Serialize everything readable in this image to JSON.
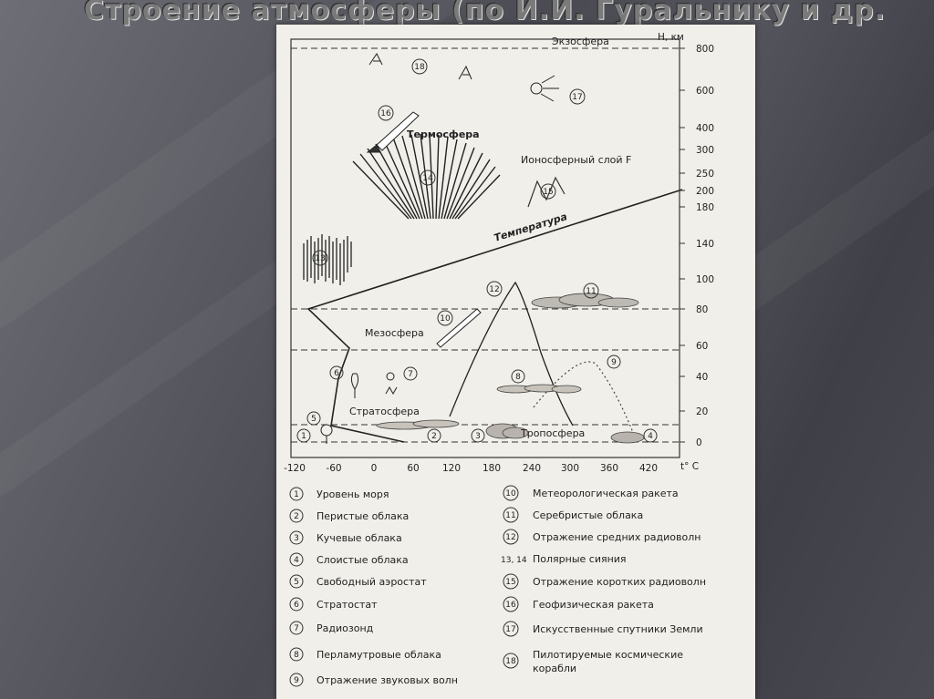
{
  "slide": {
    "title": "Строение атмосферы (по И.И. Гуральнику и др."
  },
  "diagram": {
    "y_axis_label": "Н, км",
    "x_axis_label": "t° C",
    "y_ticks": [
      {
        "label": "800",
        "value": 800
      },
      {
        "label": "600",
        "value": 600
      },
      {
        "label": "400",
        "value": 400
      },
      {
        "label": "300",
        "value": 300
      },
      {
        "label": "250",
        "value": 250
      },
      {
        "label": "200",
        "value": 200
      },
      {
        "label": "180",
        "value": 180
      },
      {
        "label": "140",
        "value": 140
      },
      {
        "label": "100",
        "value": 100
      },
      {
        "label": "80",
        "value": 80
      },
      {
        "label": "60",
        "value": 60
      },
      {
        "label": "40",
        "value": 40
      },
      {
        "label": "20",
        "value": 20
      },
      {
        "label": "0",
        "value": 0
      }
    ],
    "x_ticks": [
      {
        "label": "-120",
        "value": -120
      },
      {
        "label": "-60",
        "value": -60
      },
      {
        "label": "0",
        "value": 0
      },
      {
        "label": "60",
        "value": 60
      },
      {
        "label": "120",
        "value": 120
      },
      {
        "label": "180",
        "value": 180
      },
      {
        "label": "240",
        "value": 240
      },
      {
        "label": "300",
        "value": 300
      },
      {
        "label": "360",
        "value": 360
      },
      {
        "label": "420",
        "value": 420
      }
    ],
    "layers": {
      "exosphere": "Экзосфера",
      "thermosphere": "Термосфера",
      "ionosphere": "Ионосферный слой F",
      "temperature": "Температура",
      "mesosphere": "Мезосфера",
      "stratosphere": "Стратосфера",
      "troposphere": "Тропосфера"
    },
    "markers": [
      "1",
      "2",
      "3",
      "4",
      "5",
      "6",
      "7",
      "8",
      "9",
      "10",
      "11",
      "12",
      "13",
      "14",
      "15",
      "16",
      "17",
      "18"
    ],
    "legend": [
      {
        "num": "1",
        "text": "Уровень моря"
      },
      {
        "num": "2",
        "text": "Перистые облака"
      },
      {
        "num": "3",
        "text": "Кучевые облака"
      },
      {
        "num": "4",
        "text": "Слоистые облака"
      },
      {
        "num": "5",
        "text": "Свободный аэростат"
      },
      {
        "num": "6",
        "text": "Стратостат"
      },
      {
        "num": "7",
        "text": "Радиозонд"
      },
      {
        "num": "8",
        "text": "Перламутровые облака"
      },
      {
        "num": "9",
        "text": "Отражение звуковых волн"
      },
      {
        "num": "10",
        "text": "Метеорологическая ракета"
      },
      {
        "num": "11",
        "text": "Серебристые облака"
      },
      {
        "num": "12",
        "text": "Отражение средних радиоволн"
      },
      {
        "num": "13, 14",
        "text": "Полярные сияния"
      },
      {
        "num": "15",
        "text": "Отражение коротких радиоволн"
      },
      {
        "num": "16",
        "text": "Геофизическая ракета"
      },
      {
        "num": "17",
        "text": "Искусственные спутники Земли"
      },
      {
        "num": "18",
        "text": "Пилотируемые космические корабли"
      }
    ]
  }
}
